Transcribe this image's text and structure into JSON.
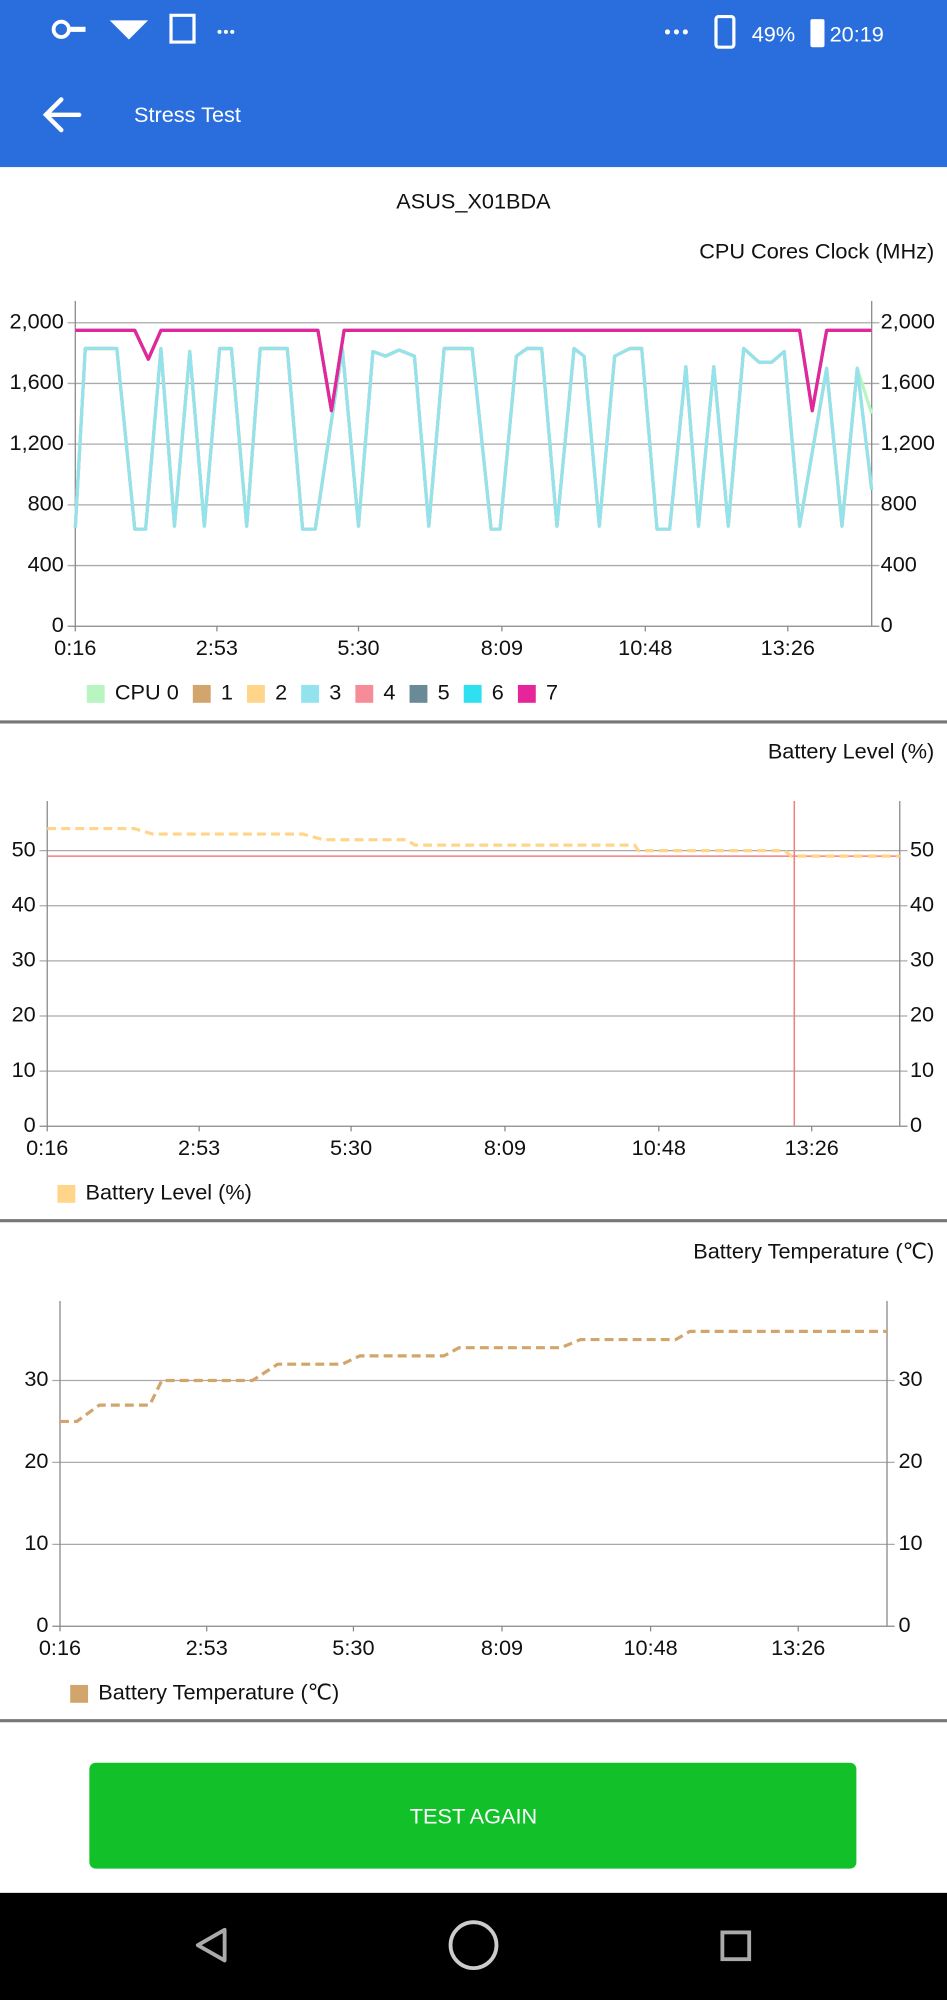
{
  "status_bar": {
    "battery": "49%",
    "time": "20:19"
  },
  "header": {
    "title": "Stress Test"
  },
  "device": "ASUS_X01BDA",
  "chart_data": [
    {
      "type": "line",
      "title": "CPU Cores Clock (MHz)",
      "grid": true,
      "dashed": false,
      "xlim": [
        16,
        899
      ],
      "ylim": [
        0,
        2143
      ],
      "xticks": [
        {
          "value": 16,
          "label": "0:16"
        },
        {
          "value": 173,
          "label": "2:53"
        },
        {
          "value": 330,
          "label": "5:30"
        },
        {
          "value": 489,
          "label": "8:09"
        },
        {
          "value": 648,
          "label": "10:48"
        },
        {
          "value": 806,
          "label": "13:26"
        }
      ],
      "yticks": [
        0,
        400,
        800,
        {
          "value": 1200,
          "label": "1,200"
        },
        {
          "value": 1600,
          "label": "1,600"
        },
        {
          "value": 2000,
          "label": "2,000"
        }
      ],
      "series": [
        {
          "name": "CPU 0",
          "color": "#b9f5c0",
          "x": [
            16,
            27,
            62,
            82,
            94,
            111,
            126,
            143,
            159,
            176,
            189,
            206,
            221,
            251,
            268,
            282,
            312,
            330,
            346,
            360,
            375,
            392,
            408,
            425,
            456,
            477,
            487,
            505,
            517,
            533,
            550,
            569,
            580,
            597,
            614,
            631,
            644,
            661,
            675,
            693,
            707,
            724,
            740,
            757,
            774,
            788,
            802,
            819,
            849,
            866,
            883,
            899
          ],
          "values": [
            650,
            1830,
            1830,
            640,
            640,
            1830,
            660,
            1810,
            660,
            1830,
            1830,
            660,
            1830,
            1830,
            640,
            640,
            1830,
            660,
            1810,
            1780,
            1820,
            1780,
            660,
            1830,
            1830,
            640,
            640,
            1780,
            1830,
            1830,
            660,
            1830,
            1780,
            660,
            1780,
            1830,
            1830,
            640,
            640,
            1710,
            660,
            1710,
            660,
            1830,
            1740,
            1740,
            1810,
            660,
            1700,
            660,
            1700,
            1400
          ]
        },
        {
          "name": "1",
          "color": "#d2a56c",
          "x": [
            16,
            27,
            62,
            82,
            94,
            111,
            126,
            143,
            159,
            176,
            189,
            206,
            221,
            251,
            268,
            282,
            312,
            330,
            346,
            360,
            375,
            392,
            408,
            425,
            456,
            477,
            487,
            505,
            517,
            533,
            550,
            569,
            580,
            597,
            614,
            631,
            644,
            661,
            675,
            693,
            707,
            724,
            740,
            757,
            774,
            788,
            802,
            819,
            849,
            866,
            883,
            899
          ],
          "values": [
            650,
            1830,
            1830,
            640,
            640,
            1830,
            660,
            1810,
            660,
            1830,
            1830,
            660,
            1830,
            1830,
            640,
            640,
            1830,
            660,
            1810,
            1780,
            1820,
            1780,
            660,
            1830,
            1830,
            640,
            640,
            1780,
            1830,
            1830,
            660,
            1830,
            1780,
            660,
            1780,
            1830,
            1830,
            640,
            640,
            1710,
            660,
            1710,
            660,
            1830,
            1740,
            1740,
            1810,
            660,
            1700,
            660,
            1700,
            900
          ]
        },
        {
          "name": "2",
          "color": "#ffd58a",
          "x": [
            16,
            27,
            62,
            82,
            94,
            111,
            126,
            143,
            159,
            176,
            189,
            206,
            221,
            251,
            268,
            282,
            312,
            330,
            346,
            360,
            375,
            392,
            408,
            425,
            456,
            477,
            487,
            505,
            517,
            533,
            550,
            569,
            580,
            597,
            614,
            631,
            644,
            661,
            675,
            693,
            707,
            724,
            740,
            757,
            774,
            788,
            802,
            819,
            849,
            866,
            883,
            899
          ],
          "values": [
            650,
            1830,
            1830,
            640,
            640,
            1830,
            660,
            1810,
            660,
            1830,
            1830,
            660,
            1830,
            1830,
            640,
            640,
            1830,
            660,
            1810,
            1780,
            1820,
            1780,
            660,
            1830,
            1830,
            640,
            640,
            1780,
            1830,
            1830,
            660,
            1830,
            1780,
            660,
            1780,
            1830,
            1830,
            640,
            640,
            1710,
            660,
            1710,
            660,
            1830,
            1740,
            1740,
            1810,
            660,
            1700,
            660,
            1700,
            900
          ]
        },
        {
          "name": "3",
          "color": "#93e3ef",
          "x": [
            16,
            27,
            62,
            82,
            94,
            111,
            126,
            143,
            159,
            176,
            189,
            206,
            221,
            251,
            268,
            282,
            312,
            330,
            346,
            360,
            375,
            392,
            408,
            425,
            456,
            477,
            487,
            505,
            517,
            533,
            550,
            569,
            580,
            597,
            614,
            631,
            644,
            661,
            675,
            693,
            707,
            724,
            740,
            757,
            774,
            788,
            802,
            819,
            849,
            866,
            883,
            899
          ],
          "values": [
            650,
            1830,
            1830,
            640,
            640,
            1830,
            660,
            1810,
            660,
            1830,
            1830,
            660,
            1830,
            1830,
            640,
            640,
            1830,
            660,
            1810,
            1780,
            1820,
            1780,
            660,
            1830,
            1830,
            640,
            640,
            1780,
            1830,
            1830,
            660,
            1830,
            1780,
            660,
            1780,
            1830,
            1830,
            640,
            640,
            1710,
            660,
            1710,
            660,
            1830,
            1740,
            1740,
            1810,
            660,
            1700,
            660,
            1700,
            900
          ]
        },
        {
          "name": "4",
          "color": "#f68c97",
          "x": [
            16,
            82,
            97,
            111,
            285,
            300,
            314,
            819,
            833,
            849,
            899
          ],
          "values": [
            1950,
            1950,
            1760,
            1950,
            1950,
            1420,
            1950,
            1950,
            1420,
            1950,
            1950
          ]
        },
        {
          "name": "5",
          "color": "#6a8a98",
          "x": [
            16,
            82,
            97,
            111,
            285,
            300,
            314,
            819,
            833,
            849,
            899
          ],
          "values": [
            1950,
            1950,
            1760,
            1950,
            1950,
            1420,
            1950,
            1950,
            1420,
            1950,
            1950
          ]
        },
        {
          "name": "6",
          "color": "#2ee0f0",
          "x": [
            16,
            82,
            97,
            111,
            285,
            300,
            314,
            819,
            833,
            849,
            899
          ],
          "values": [
            1950,
            1950,
            1760,
            1950,
            1950,
            1420,
            1950,
            1950,
            1420,
            1950,
            1950
          ]
        },
        {
          "name": "7",
          "color": "#e6259a",
          "x": [
            16,
            82,
            97,
            111,
            285,
            300,
            314,
            819,
            833,
            849,
            899
          ],
          "values": [
            1950,
            1950,
            1760,
            1950,
            1950,
            1420,
            1950,
            1950,
            1420,
            1950,
            1950
          ]
        }
      ]
    },
    {
      "type": "line",
      "title": "Battery Level (%)",
      "grid": true,
      "dashed": true,
      "xlim": [
        16,
        897
      ],
      "ylim": [
        0,
        59
      ],
      "xticks": [
        {
          "value": 16,
          "label": "0:16"
        },
        {
          "value": 173,
          "label": "2:53"
        },
        {
          "value": 330,
          "label": "5:30"
        },
        {
          "value": 489,
          "label": "8:09"
        },
        {
          "value": 648,
          "label": "10:48"
        },
        {
          "value": 806,
          "label": "13:26"
        }
      ],
      "yticks": [
        0,
        10,
        20,
        30,
        40,
        50
      ],
      "crosshair": {
        "x": 788,
        "y": 49,
        "color": "#f08080"
      },
      "series": [
        {
          "name": "Battery Level (%)",
          "color": "#ffd58a",
          "x": [
            16,
            106,
            125,
            280,
            301,
            387,
            396,
            623,
            627,
            778,
            785,
            897
          ],
          "values": [
            54,
            54,
            53,
            53,
            52,
            52,
            51,
            51,
            50,
            50,
            49,
            49
          ]
        }
      ]
    },
    {
      "type": "line",
      "title": "Battery Temperature (℃)",
      "grid": true,
      "dashed": true,
      "xlim": [
        16,
        901
      ],
      "ylim": [
        0,
        39.7
      ],
      "xticks": [
        {
          "value": 16,
          "label": "0:16"
        },
        {
          "value": 173,
          "label": "2:53"
        },
        {
          "value": 330,
          "label": "5:30"
        },
        {
          "value": 489,
          "label": "8:09"
        },
        {
          "value": 648,
          "label": "10:48"
        },
        {
          "value": 806,
          "label": "13:26"
        }
      ],
      "yticks": [
        0,
        10,
        20,
        30
      ],
      "series": [
        {
          "name": "Battery Temperature (℃)",
          "color": "#d2a56c",
          "x": [
            16,
            34,
            58,
            112,
            125,
            222,
            249,
            318,
            337,
            427,
            443,
            552,
            573,
            675,
            690,
            901
          ],
          "values": [
            25,
            25,
            27,
            27,
            30,
            30,
            32,
            32,
            33,
            33,
            34,
            34,
            35,
            35,
            36,
            36
          ]
        }
      ]
    }
  ],
  "button": "TEST AGAIN"
}
